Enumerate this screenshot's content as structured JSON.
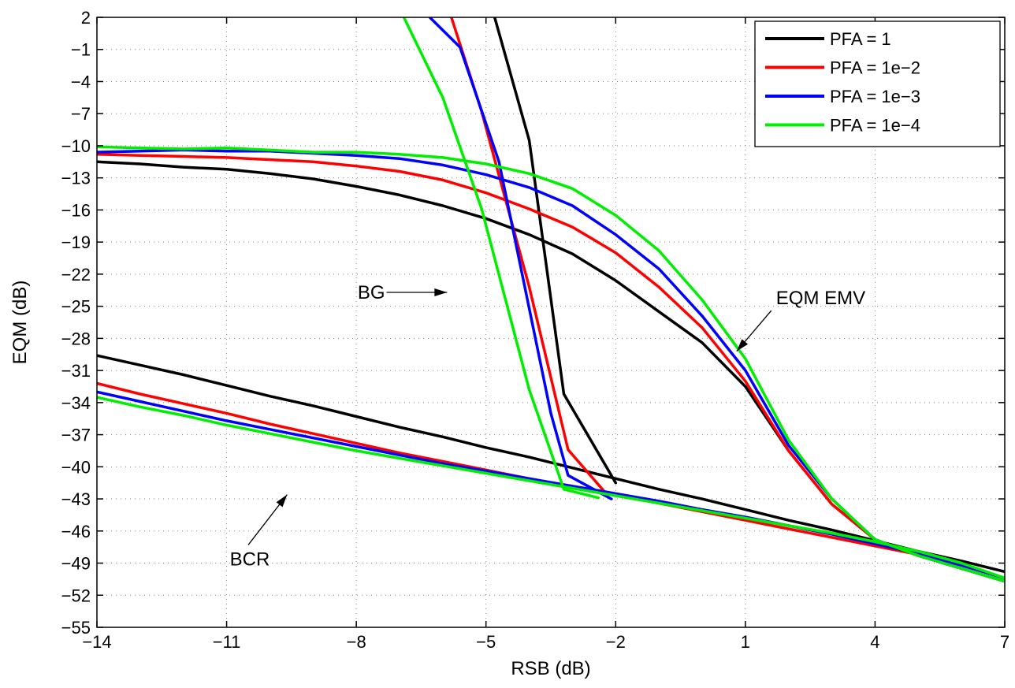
{
  "chart_data": {
    "type": "line",
    "xlabel": "RSB (dB)",
    "ylabel": "EQM (dB)",
    "xlim": [
      -14,
      7
    ],
    "ylim": [
      -55,
      2
    ],
    "x_ticks": [
      -14,
      -11,
      -8,
      -5,
      -2,
      1,
      4,
      7
    ],
    "y_ticks": [
      2,
      -1,
      -4,
      -7,
      -10,
      -13,
      -16,
      -19,
      -22,
      -25,
      -28,
      -31,
      -34,
      -37,
      -40,
      -43,
      -46,
      -49,
      -52,
      -55
    ],
    "x_tick_labels": [
      "−14",
      "−11",
      "−8",
      "−5",
      "−2",
      "1",
      "4",
      "7"
    ],
    "y_tick_labels": [
      "2",
      "−1",
      "−4",
      "−7",
      "−10",
      "−13",
      "−16",
      "−19",
      "−22",
      "−25",
      "−28",
      "−31",
      "−34",
      "−37",
      "−40",
      "−43",
      "−46",
      "−49",
      "−52",
      "−55"
    ],
    "grid": true,
    "legend_position": "top-right",
    "series": [
      {
        "name": "PFA = 1",
        "color": "#000000",
        "groups": [
          {
            "label": "EQM EMV",
            "x": [
              -14,
              -13,
              -12,
              -11,
              -10,
              -9,
              -8,
              -7,
              -6,
              -5,
              -4,
              -3,
              -2,
              -1,
              0,
              1,
              2,
              3,
              4,
              5,
              6,
              7
            ],
            "y": [
              -11.5,
              -11.7,
              -12.0,
              -12.2,
              -12.6,
              -13.1,
              -13.8,
              -14.6,
              -15.6,
              -16.8,
              -18.3,
              -20.1,
              -22.6,
              -25.5,
              -28.4,
              -32.5,
              -38.5,
              -43.5,
              -46.8,
              -48.3,
              -49.5,
              -50.7
            ]
          },
          {
            "label": "BG",
            "x": [
              -4.8,
              -4.0,
              -3.2,
              -2.0
            ],
            "y": [
              2,
              -9.5,
              -33.2,
              -41.5
            ]
          },
          {
            "label": "BCR",
            "x": [
              -14,
              -13,
              -12,
              -11,
              -10,
              -9,
              -8,
              -7,
              -6,
              -5,
              -4,
              -3,
              -2,
              -1,
              0,
              1,
              2,
              3,
              4,
              5,
              6,
              7
            ],
            "y": [
              -29.6,
              -30.5,
              -31.4,
              -32.4,
              -33.4,
              -34.3,
              -35.3,
              -36.3,
              -37.2,
              -38.2,
              -39.1,
              -40.1,
              -41.1,
              -42.1,
              -43.0,
              -44.0,
              -45.0,
              -45.9,
              -46.9,
              -47.9,
              -48.8,
              -49.8
            ]
          }
        ]
      },
      {
        "name": "PFA = 1e−2",
        "color": "#ff0000",
        "groups": [
          {
            "label": "EQM EMV",
            "x": [
              -14,
              -13,
              -12,
              -11,
              -10,
              -9,
              -8,
              -7,
              -6,
              -5,
              -4,
              -3,
              -2,
              -1,
              0,
              1,
              2,
              3,
              4,
              5,
              6,
              7
            ],
            "y": [
              -10.8,
              -10.9,
              -11.0,
              -11.1,
              -11.3,
              -11.5,
              -11.9,
              -12.4,
              -13.2,
              -14.4,
              -15.9,
              -17.6,
              -20.0,
              -23.2,
              -27.0,
              -32.0,
              -38.5,
              -43.5,
              -46.8,
              -48.3,
              -49.5,
              -50.7
            ]
          },
          {
            "label": "BG",
            "x": [
              -5.8,
              -5.1,
              -4.0,
              -3.1,
              -2.2
            ],
            "y": [
              2,
              -6.8,
              -23.2,
              -38.4,
              -42.6
            ]
          },
          {
            "label": "BCR",
            "x": [
              -14,
              -13,
              -12,
              -11,
              -10,
              -9,
              -8,
              -7,
              -6,
              -5,
              -4,
              -3,
              -2,
              -1,
              0,
              1,
              2,
              3,
              4,
              5,
              6,
              7
            ],
            "y": [
              -32.2,
              -33.2,
              -34.1,
              -35.0,
              -36.0,
              -36.9,
              -37.8,
              -38.7,
              -39.5,
              -40.3,
              -41.1,
              -41.9,
              -42.6,
              -43.4,
              -44.2,
              -45.0,
              -45.8,
              -46.6,
              -47.4,
              -48.2,
              -49.2,
              -50.4
            ]
          }
        ]
      },
      {
        "name": "PFA = 1e−3",
        "color": "#0000ff",
        "groups": [
          {
            "label": "EQM EMV",
            "x": [
              -14,
              -13,
              -12,
              -11,
              -10,
              -9,
              -8,
              -7,
              -6,
              -5,
              -4,
              -3,
              -2,
              -1,
              0,
              1,
              2,
              3,
              4,
              5,
              6,
              7
            ],
            "y": [
              -10.6,
              -10.5,
              -10.4,
              -10.5,
              -10.5,
              -10.7,
              -10.9,
              -11.2,
              -11.8,
              -12.7,
              -13.9,
              -15.6,
              -18.3,
              -21.5,
              -25.9,
              -31.0,
              -38.0,
              -43.0,
              -46.8,
              -48.3,
              -49.5,
              -50.7
            ]
          },
          {
            "label": "BG",
            "x": [
              -6.3,
              -5.6,
              -4.7,
              -3.5,
              -3.1,
              -2.1
            ],
            "y": [
              2,
              -0.8,
              -11.5,
              -35.0,
              -40.8,
              -43.0
            ]
          },
          {
            "label": "BCR",
            "x": [
              -14,
              -13,
              -12,
              -11,
              -10,
              -9,
              -8,
              -7,
              -6,
              -5,
              -4,
              -3,
              -2,
              -1,
              0,
              1,
              2,
              3,
              4,
              5,
              6,
              7
            ],
            "y": [
              -33.0,
              -33.9,
              -34.8,
              -35.7,
              -36.5,
              -37.3,
              -38.1,
              -38.9,
              -39.7,
              -40.4,
              -41.1,
              -41.8,
              -42.5,
              -43.2,
              -44.0,
              -44.7,
              -45.5,
              -46.3,
              -47.2,
              -48.1,
              -49.2,
              -50.4
            ]
          }
        ]
      },
      {
        "name": "PFA = 1e−4",
        "color": "#00ee00",
        "groups": [
          {
            "label": "EQM EMV",
            "x": [
              -14,
              -13,
              -12,
              -11,
              -10,
              -9,
              -8,
              -7,
              -6,
              -5,
              -4,
              -3,
              -2,
              -1,
              0,
              1,
              2,
              3,
              4,
              5,
              6,
              7
            ],
            "y": [
              -10.1,
              -10.2,
              -10.3,
              -10.2,
              -10.4,
              -10.6,
              -10.6,
              -10.8,
              -11.1,
              -11.7,
              -12.6,
              -14.0,
              -16.5,
              -19.8,
              -24.4,
              -29.9,
              -37.5,
              -43.0,
              -46.8,
              -48.3,
              -49.5,
              -50.7
            ]
          },
          {
            "label": "BG",
            "x": [
              -6.9,
              -6.0,
              -5.1,
              -4.0,
              -3.2,
              -2.4
            ],
            "y": [
              2,
              -5.5,
              -15.9,
              -32.8,
              -42.1,
              -42.9
            ]
          },
          {
            "label": "BCR",
            "x": [
              -14,
              -13,
              -12,
              -11,
              -10,
              -9,
              -8,
              -7,
              -6,
              -5,
              -4,
              -3,
              -2,
              -1,
              0,
              1,
              2,
              3,
              4,
              5,
              6,
              7
            ],
            "y": [
              -33.5,
              -34.4,
              -35.2,
              -36.1,
              -36.9,
              -37.7,
              -38.5,
              -39.2,
              -39.9,
              -40.6,
              -41.3,
              -42.0,
              -42.7,
              -43.4,
              -44.1,
              -44.8,
              -45.5,
              -46.2,
              -47.0,
              -47.9,
              -49.0,
              -50.4
            ]
          }
        ]
      }
    ],
    "annotations": [
      {
        "text": "BG",
        "arrow_from": [
          -7.3,
          -23.7
        ],
        "arrow_to": [
          -5.9,
          -23.7
        ]
      },
      {
        "text": "EQM EMV",
        "arrow_from": [
          1.6,
          -25.4
        ],
        "arrow_to": [
          0.8,
          -29.2
        ]
      },
      {
        "text": "BCR",
        "arrow_from": [
          -10.5,
          -47.3
        ],
        "arrow_to": [
          -9.6,
          -42.6
        ]
      }
    ]
  }
}
